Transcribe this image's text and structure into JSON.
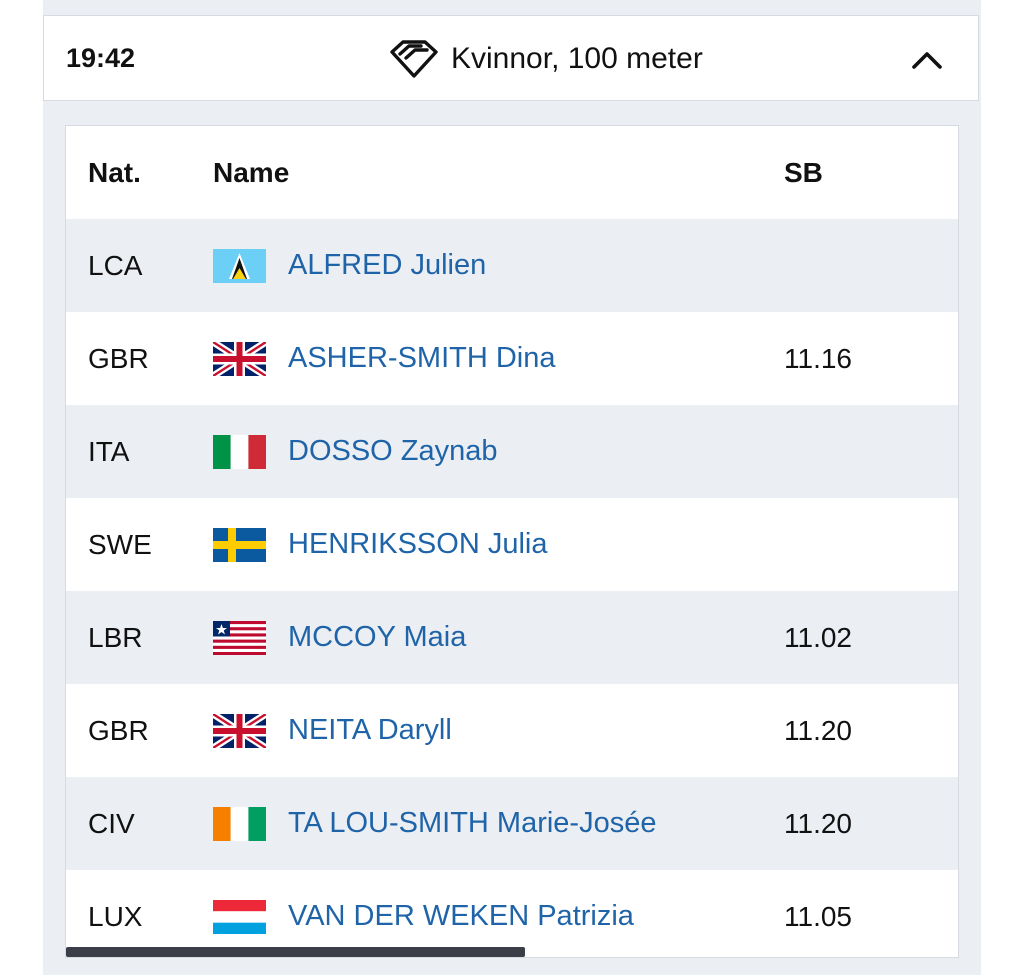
{
  "event": {
    "time": "19:42",
    "title": "Kvinnor, 100 meter",
    "icon": "diamond-icon",
    "toggle_icon": "chevron-up-icon"
  },
  "table": {
    "headers": {
      "nat": "Nat.",
      "name": "Name",
      "sb": "SB"
    },
    "rows": [
      {
        "nat": "LCA",
        "flag": "flag-saint-lucia",
        "name": "ALFRED Julien",
        "sb": ""
      },
      {
        "nat": "GBR",
        "flag": "flag-great-britain",
        "name": "ASHER-SMITH Dina",
        "sb": "11.16"
      },
      {
        "nat": "ITA",
        "flag": "flag-italy",
        "name": "DOSSO Zaynab",
        "sb": ""
      },
      {
        "nat": "SWE",
        "flag": "flag-sweden",
        "name": "HENRIKSSON Julia",
        "sb": ""
      },
      {
        "nat": "LBR",
        "flag": "flag-liberia",
        "name": "MCCOY Maia",
        "sb": "11.02"
      },
      {
        "nat": "GBR",
        "flag": "flag-great-britain",
        "name": "NEITA Daryll",
        "sb": "11.20"
      },
      {
        "nat": "CIV",
        "flag": "flag-ivory-coast",
        "name": "TA LOU-SMITH Marie-Josée",
        "sb": "11.20"
      },
      {
        "nat": "LUX",
        "flag": "flag-luxembourg",
        "name": "VAN DER WEKEN Patrizia",
        "sb": "11.05"
      }
    ]
  },
  "colors": {
    "link": "#1f64a8",
    "row_shade": "#ebeef3",
    "text": "#111111"
  }
}
